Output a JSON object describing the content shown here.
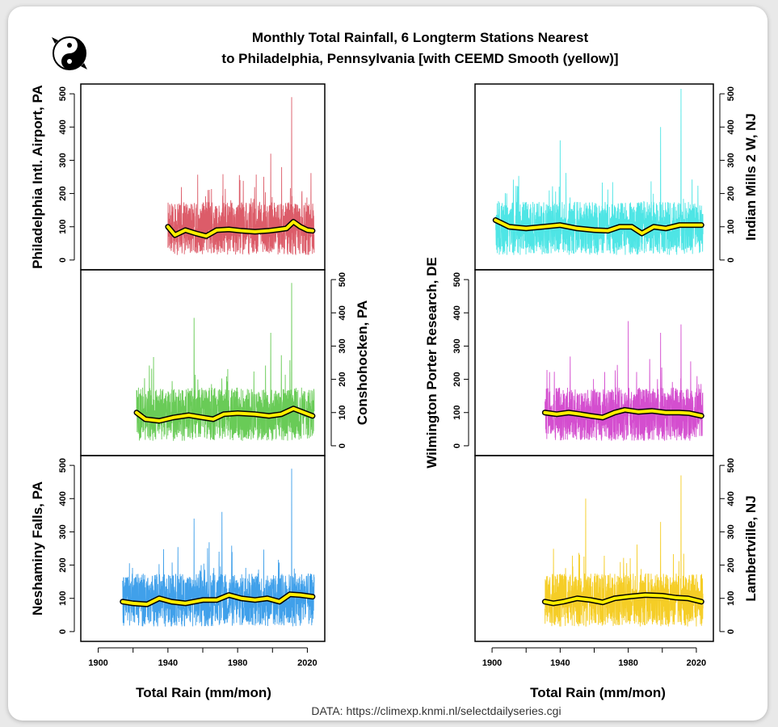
{
  "title_line1": "Monthly Total Rainfall, 6 Longterm Stations Nearest",
  "title_line2": "to Philadelphia, Pennsylvania [with CEEMD Smooth (yellow)]",
  "source": "DATA: https://climexp.knmi.nl/selectdailyseries.cgi",
  "colors": {
    "smooth": "#ffee00",
    "smooth_outline": "#000000",
    "philadelphia": "#d6404f",
    "conshohocken": "#4fc23a",
    "neshaminy": "#1f8fe6",
    "indian_mills": "#2fe0e0",
    "wilmington": "#cc2fc7",
    "lambertville": "#f3c400"
  },
  "icon": "yin-yang-logo-icon",
  "chart_data": [
    {
      "type": "line",
      "station": "Philadelphia Intl. Airport, PA",
      "xlabel": "Total Rain (mm/mon)",
      "ylabel": "Philadelphia Intl. Airport, PA",
      "xlim": [
        1890,
        2030
      ],
      "ylim": [
        -10,
        510
      ],
      "yticks": [
        0,
        100,
        200,
        300,
        400,
        500
      ],
      "xticks": [
        1900,
        1940,
        1980,
        2020
      ],
      "start_year": 1940,
      "end_year": 2023,
      "raw_peaks": [
        {
          "year": 2011,
          "value": 490
        },
        {
          "year": 1999,
          "value": 320
        }
      ],
      "smooth": {
        "x": [
          1940,
          1944,
          1950,
          1956,
          1962,
          1968,
          1975,
          1982,
          1990,
          1998,
          2004,
          2008,
          2012,
          2016,
          2020,
          2023
        ],
        "y": [
          100,
          75,
          90,
          80,
          72,
          90,
          92,
          88,
          85,
          88,
          92,
          95,
          115,
          100,
          90,
          88
        ]
      }
    },
    {
      "type": "line",
      "station": "Conshohocken, PA",
      "xlabel": "Total Rain (mm/mon)",
      "ylabel": "Conshohocken, PA",
      "xlim": [
        1890,
        2030
      ],
      "ylim": [
        -10,
        510
      ],
      "yticks": [
        0,
        100,
        200,
        300,
        400,
        500
      ],
      "xticks": [
        1900,
        1940,
        1980,
        2020
      ],
      "start_year": 1922,
      "end_year": 2023,
      "raw_peaks": [
        {
          "year": 2011,
          "value": 490
        },
        {
          "year": 1955,
          "value": 385
        },
        {
          "year": 1999,
          "value": 340
        }
      ],
      "smooth": {
        "x": [
          1922,
          1927,
          1935,
          1943,
          1952,
          1960,
          1966,
          1972,
          1980,
          1990,
          1998,
          2005,
          2012,
          2018,
          2023
        ],
        "y": [
          100,
          80,
          75,
          85,
          92,
          85,
          80,
          95,
          98,
          95,
          90,
          95,
          112,
          100,
          90
        ]
      }
    },
    {
      "type": "line",
      "station": "Neshaminy Falls, PA",
      "xlabel": "Total Rain (mm/mon)",
      "ylabel": "Neshaminy Falls, PA",
      "xlim": [
        1890,
        2030
      ],
      "ylim": [
        -10,
        510
      ],
      "yticks": [
        0,
        100,
        200,
        300,
        400,
        500
      ],
      "xticks": [
        1900,
        1940,
        1980,
        2020
      ],
      "start_year": 1914,
      "end_year": 2023,
      "raw_peaks": [
        {
          "year": 2011,
          "value": 490
        },
        {
          "year": 1971,
          "value": 360
        },
        {
          "year": 1955,
          "value": 340
        }
      ],
      "smooth": {
        "x": [
          1914,
          1920,
          1928,
          1935,
          1942,
          1950,
          1960,
          1968,
          1975,
          1982,
          1990,
          1997,
          2004,
          2010,
          2016,
          2023
        ],
        "y": [
          90,
          85,
          82,
          100,
          90,
          85,
          95,
          95,
          110,
          100,
          95,
          100,
          90,
          112,
          110,
          105
        ]
      }
    },
    {
      "type": "line",
      "station": "Indian Mills 2 W, NJ",
      "xlabel": "Total Rain (mm/mon)",
      "ylabel": "Indian Mills 2 W, NJ",
      "xlim": [
        1890,
        2030
      ],
      "ylim": [
        -10,
        510
      ],
      "yticks": [
        0,
        100,
        200,
        300,
        400,
        500
      ],
      "xticks": [
        1900,
        1940,
        1980,
        2020
      ],
      "start_year": 1902,
      "end_year": 2023,
      "raw_peaks": [
        {
          "year": 2011,
          "value": 515
        },
        {
          "year": 1999,
          "value": 400
        },
        {
          "year": 1940,
          "value": 360
        }
      ],
      "smooth": {
        "x": [
          1902,
          1910,
          1920,
          1930,
          1940,
          1950,
          1960,
          1968,
          1975,
          1982,
          1988,
          1995,
          2002,
          2010,
          2016,
          2023
        ],
        "y": [
          120,
          100,
          95,
          100,
          105,
          95,
          90,
          88,
          100,
          100,
          80,
          100,
          95,
          105,
          105,
          105
        ]
      }
    },
    {
      "type": "line",
      "station": "Wilmington Porter Research, DE",
      "xlabel": "Total Rain (mm/mon)",
      "ylabel": "Wilmington Porter Research, DE",
      "xlim": [
        1890,
        2030
      ],
      "ylim": [
        -10,
        510
      ],
      "yticks": [
        0,
        100,
        200,
        300,
        400,
        500
      ],
      "xticks": [
        1900,
        1940,
        1980,
        2020
      ],
      "start_year": 1931,
      "end_year": 2023,
      "raw_peaks": [
        {
          "year": 1980,
          "value": 375
        },
        {
          "year": 2011,
          "value": 365
        },
        {
          "year": 1999,
          "value": 340
        }
      ],
      "smooth": {
        "x": [
          1931,
          1938,
          1945,
          1952,
          1958,
          1965,
          1972,
          1978,
          1986,
          1994,
          2002,
          2010,
          2016,
          2023
        ],
        "y": [
          100,
          95,
          100,
          95,
          90,
          85,
          100,
          108,
          102,
          105,
          100,
          100,
          98,
          90
        ]
      }
    },
    {
      "type": "line",
      "station": "Lambertville, NJ",
      "xlabel": "Total Rain (mm/mon)",
      "ylabel": "Lambertville, NJ",
      "xlim": [
        1890,
        2030
      ],
      "ylim": [
        -10,
        510
      ],
      "yticks": [
        0,
        100,
        200,
        300,
        400,
        500
      ],
      "xticks": [
        1900,
        1940,
        1980,
        2020
      ],
      "start_year": 1931,
      "end_year": 2023,
      "raw_peaks": [
        {
          "year": 2011,
          "value": 470
        },
        {
          "year": 1955,
          "value": 400
        },
        {
          "year": 1999,
          "value": 330
        }
      ],
      "smooth": {
        "x": [
          1931,
          1936,
          1942,
          1950,
          1958,
          1965,
          1972,
          1980,
          1990,
          2000,
          2008,
          2015,
          2023
        ],
        "y": [
          90,
          85,
          90,
          100,
          95,
          88,
          100,
          105,
          110,
          108,
          102,
          100,
          90
        ]
      }
    }
  ]
}
